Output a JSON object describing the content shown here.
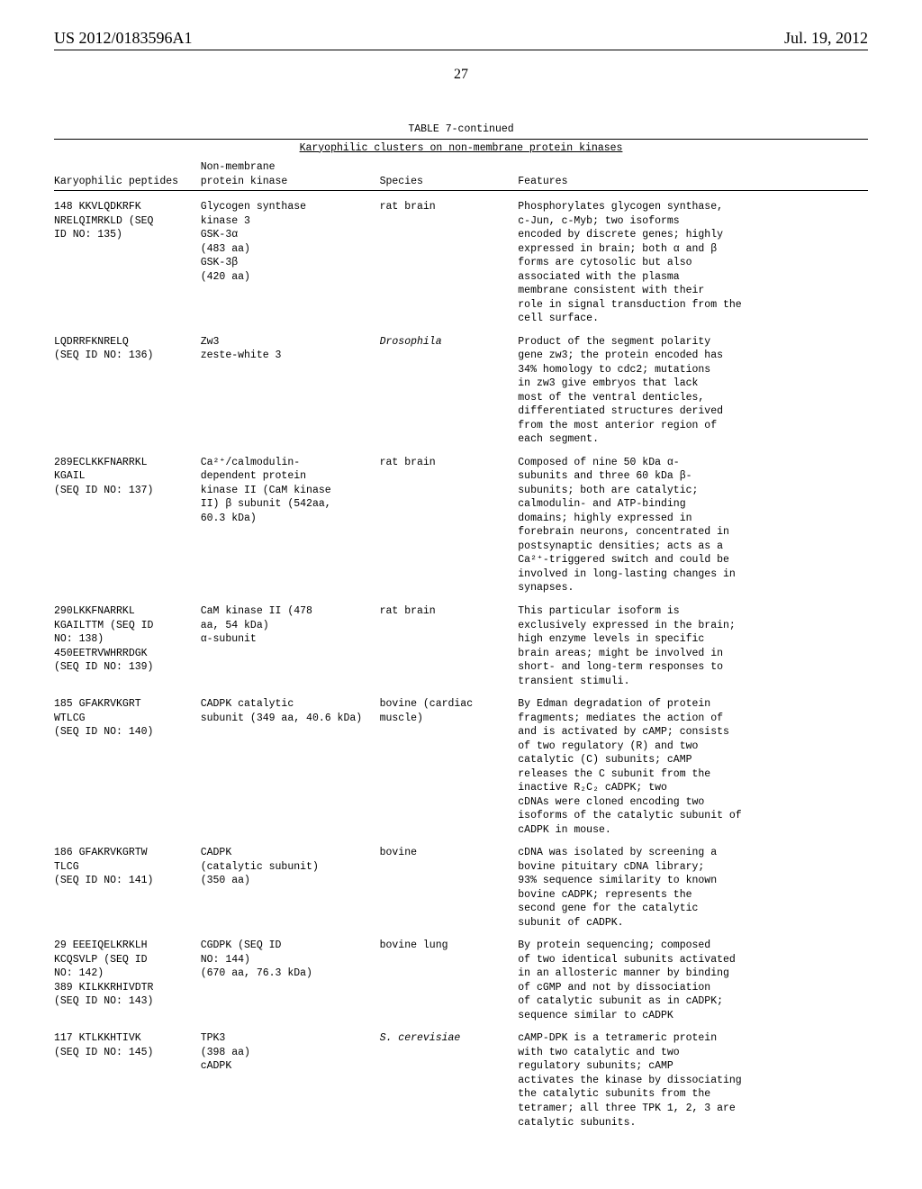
{
  "header": {
    "left": "US 2012/0183596A1",
    "right": "Jul. 19, 2012"
  },
  "page_number": "27",
  "table": {
    "caption": "TABLE 7-continued",
    "subtitle": "Karyophilic clusters on non-membrane protein kinases",
    "columns": {
      "c1": "Karyophilic peptides",
      "c2_top": "Non-membrane",
      "c2_bot": "protein kinase",
      "c3": "Species",
      "c4": "Features"
    },
    "rows": [
      {
        "c1": "148 KKVLQDKRFK\nNRELQIMRKLD (SEQ\nID NO: 135)",
        "c2": "Glycogen synthase\nkinase 3\nGSK-3α\n(483 aa)\nGSK-3β\n(420 aa)",
        "c3": "rat brain",
        "c4": "Phosphorylates glycogen synthase,\nc-Jun, c-Myb; two isoforms\nencoded by discrete genes; highly\nexpressed in brain; both α and β\nforms are cytosolic but also\nassociated with the plasma\nmembrane consistent with their\nrole in signal transduction from the\ncell surface."
      },
      {
        "c1": "LQDRRFKNRELQ\n(SEQ ID NO: 136)",
        "c2": "Zw3\nzeste-white 3",
        "c3_italic": "Drosophila",
        "c4": "Product of the segment polarity\ngene zw3; the protein encoded has\n34% homology to cdc2; mutations\nin zw3 give embryos that lack\nmost of the ventral denticles,\ndifferentiated structures derived\nfrom the most anterior region of\neach segment."
      },
      {
        "c1": "289ECLKKFNARRKL\nKGAIL\n(SEQ ID NO: 137)",
        "c2": "Ca²⁺/calmodulin-\ndependent protein\nkinase II (CaM kinase\nII) β subunit (542aa,\n60.3 kDa)",
        "c3": "rat brain",
        "c4": "Composed of nine 50 kDa α-\nsubunits and three 60 kDa β-\nsubunits; both are catalytic;\ncalmodulin- and ATP-binding\ndomains; highly expressed in\nforebrain neurons, concentrated in\npostsynaptic densities; acts as a\nCa²⁺-triggered switch and could be\ninvolved in long-lasting changes in\nsynapses."
      },
      {
        "c1": "290LKKFNARRKL\nKGAILTTM (SEQ ID\nNO: 138)\n450EETRVWHRRDGK\n(SEQ ID NO: 139)",
        "c2": "CaM kinase II (478\naa, 54 kDa)\nα-subunit",
        "c3": "rat brain",
        "c4": "This particular isoform is\nexclusively expressed in the brain;\nhigh enzyme levels in specific\nbrain areas; might be involved in\nshort- and long-term responses to\ntransient stimuli."
      },
      {
        "c1": "185 GFAKRVKGRT\nWTLCG\n(SEQ ID NO: 140)",
        "c2": "CADPK catalytic\nsubunit (349 aa, 40.6 kDa)",
        "c3": "bovine (cardiac\nmuscle)",
        "c4": "By Edman degradation of protein\nfragments; mediates the action of\nand is activated by cAMP; consists\nof two regulatory (R) and two\ncatalytic (C) subunits; cAMP\nreleases the C subunit from the\ninactive R₂C₂ cADPK; two\ncDNAs were cloned encoding two\nisoforms of the catalytic subunit of\ncADPK in mouse."
      },
      {
        "c1": "186 GFAKRVKGRTW\nTLCG\n(SEQ ID NO: 141)",
        "c2": "CADPK\n(catalytic subunit)\n(350 aa)",
        "c3": "bovine",
        "c4": "cDNA was isolated by screening a\nbovine pituitary cDNA library;\n93% sequence similarity to known\nbovine cADPK; represents the\nsecond gene for the catalytic\nsubunit of cADPK."
      },
      {
        "c1": "29 EEEIQELKRKLH\nKCQSVLP (SEQ ID\nNO: 142)\n389 KILKKRHIVDTR\n(SEQ ID NO: 143)",
        "c2": "CGDPK (SEQ ID\nNO: 144)\n(670 aa, 76.3 kDa)",
        "c3": "bovine lung",
        "c4": "By protein sequencing; composed\nof two identical subunits activated\nin an allosteric manner by binding\nof cGMP and not by dissociation\nof catalytic subunit as in cADPK;\nsequence similar to cADPK"
      },
      {
        "c1": "117 KTLKKHTIVK\n(SEQ ID NO: 145)",
        "c2": "TPK3\n(398 aa)\ncADPK",
        "c3_italic": "S. cerevisiae",
        "c4": "cAMP-DPK is a tetrameric protein\nwith two catalytic and two\nregulatory subunits; cAMP\nactivates the kinase by dissociating\nthe catalytic subunits from the\ntetramer; all three TPK 1, 2, 3 are\ncatalytic subunits."
      }
    ]
  }
}
